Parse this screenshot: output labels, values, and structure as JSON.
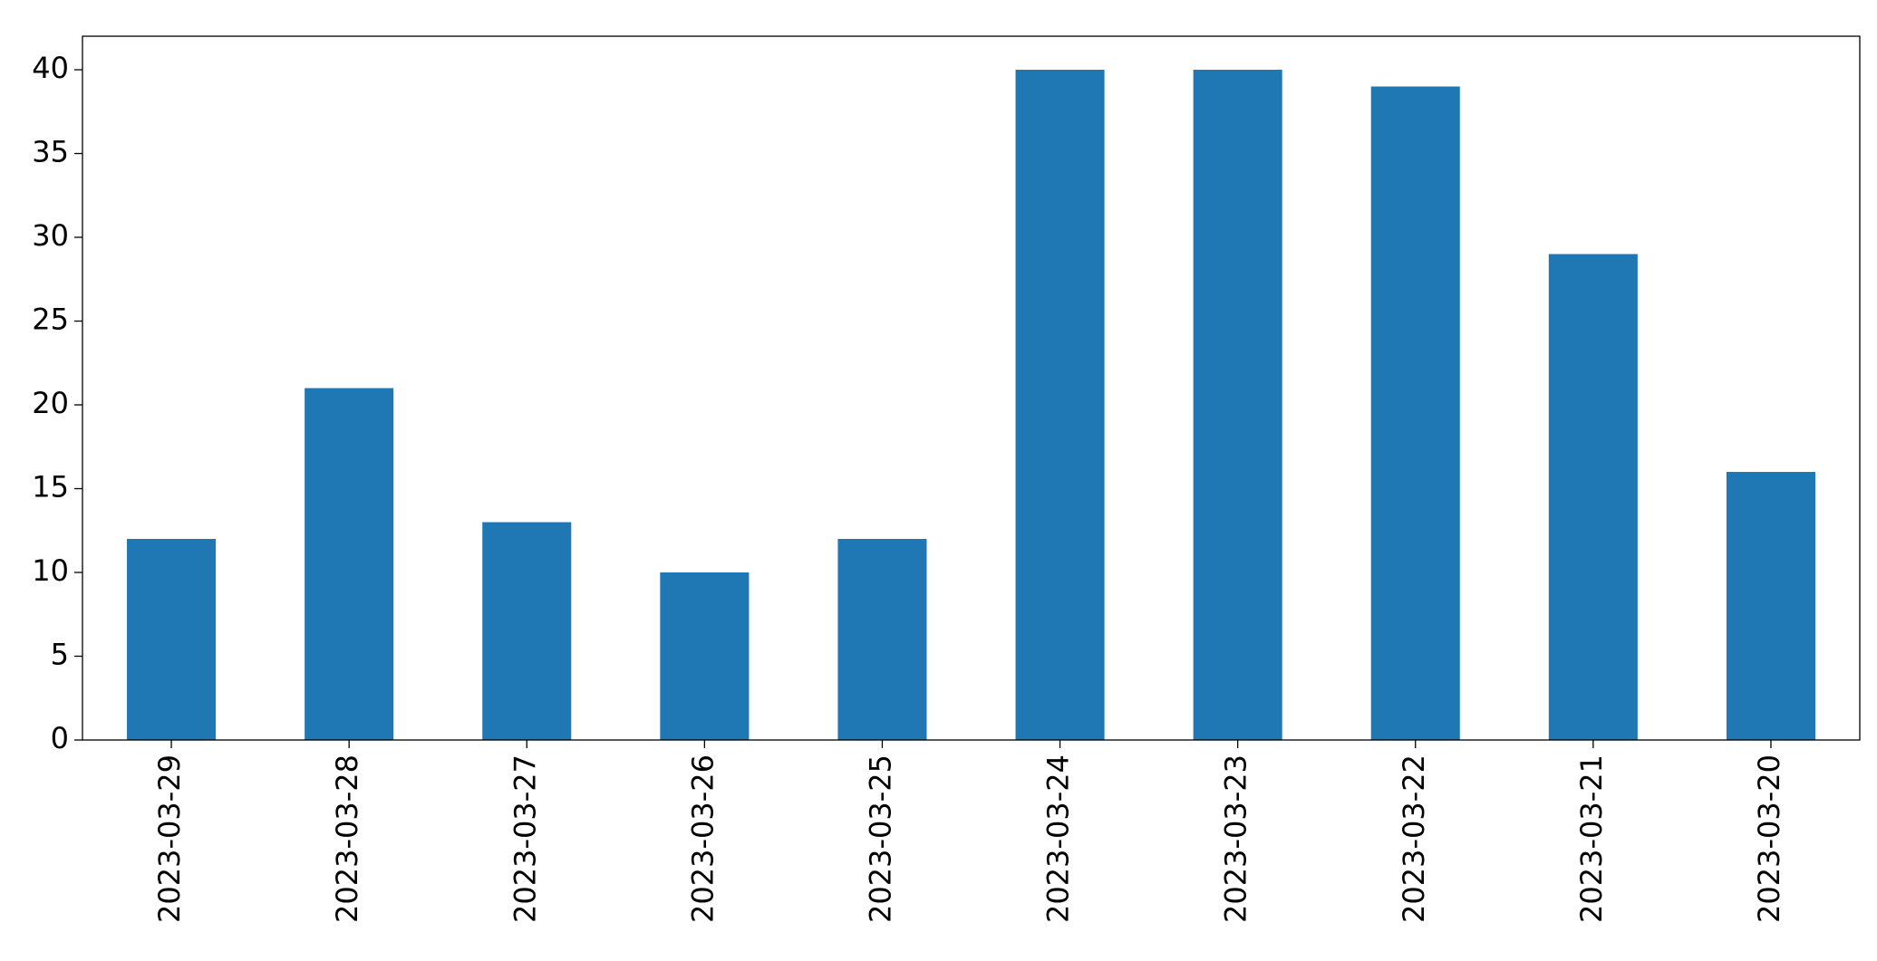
{
  "chart_data": {
    "type": "bar",
    "categories": [
      "2023-03-29",
      "2023-03-28",
      "2023-03-27",
      "2023-03-26",
      "2023-03-25",
      "2023-03-24",
      "2023-03-23",
      "2023-03-22",
      "2023-03-21",
      "2023-03-20"
    ],
    "values": [
      12,
      21,
      13,
      10,
      12,
      40,
      40,
      39,
      29,
      16
    ],
    "color": "#1f77b4",
    "ylim": [
      0,
      42
    ],
    "yticks": [
      0,
      5,
      10,
      15,
      20,
      25,
      30,
      35,
      40
    ],
    "grid": false
  }
}
